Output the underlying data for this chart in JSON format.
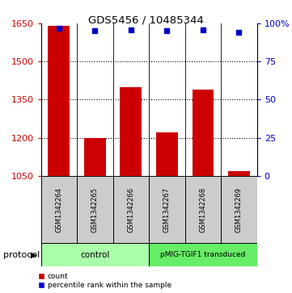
{
  "title": "GDS5456 / 10485344",
  "samples": [
    "GSM1342264",
    "GSM1342265",
    "GSM1342266",
    "GSM1342267",
    "GSM1342268",
    "GSM1342269"
  ],
  "counts": [
    1640,
    1200,
    1400,
    1222,
    1390,
    1068
  ],
  "percentile_ranks": [
    97,
    95,
    96,
    95,
    96,
    94
  ],
  "ylim_left": [
    1050,
    1650
  ],
  "ylim_right": [
    0,
    100
  ],
  "yticks_left": [
    1050,
    1200,
    1350,
    1500,
    1650
  ],
  "yticks_right": [
    0,
    25,
    50,
    75,
    100
  ],
  "ytick_labels_right": [
    "0",
    "25",
    "50",
    "75",
    "100%"
  ],
  "bar_color": "#cc0000",
  "dot_color": "#0000cc",
  "protocol_groups": [
    {
      "label": "control",
      "span": 3,
      "color": "#aaffaa"
    },
    {
      "label": "pMIG-TGIF1 transduced",
      "span": 3,
      "color": "#66ee66"
    }
  ],
  "protocol_label": "protocol",
  "legend_count_label": "count",
  "legend_pct_label": "percentile rank within the sample",
  "grid_color": "#888888",
  "background_color": "#ffffff",
  "sample_box_color": "#cccccc",
  "bar_width": 0.6
}
